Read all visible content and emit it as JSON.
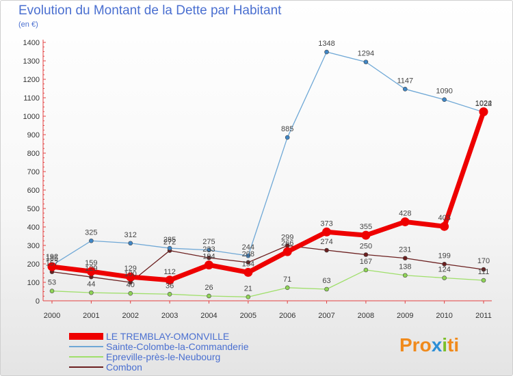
{
  "title": "Evolution du Montant de la Dette par Habitant",
  "unit": "(en €)",
  "brand": {
    "p1": "Pro",
    "p2": "x",
    "p3": "i",
    "p4": "ti"
  },
  "colors": {
    "title": "#4a6fd0",
    "LE TREMBLAY-OMONVILLE": "#ee0000",
    "Sainte-Colombe-la-Commanderie": "#6fa8d6",
    "Epreville-près-le-Neubourg": "#9fdf6a",
    "Combon": "#6b1f1f"
  },
  "chart_data": {
    "type": "line",
    "title": "Evolution du Montant de la Dette par Habitant",
    "ylabel": "(en €)",
    "xlabel": "",
    "ylim": [
      0,
      1400
    ],
    "yticks": [
      "0",
      "100",
      "200",
      "300",
      "400",
      "500",
      "600",
      "700",
      "800",
      "900",
      "1000",
      "1100",
      "1200",
      "1300",
      "1400"
    ],
    "grid": false,
    "legend_placement": "bottom-left",
    "x": [
      "2000",
      "2001",
      "2002",
      "2003",
      "2004",
      "2005",
      "2006",
      "2007",
      "2008",
      "2009",
      "2010",
      "2011"
    ],
    "series": [
      {
        "name": "LE TREMBLAY-OMONVILLE",
        "values": [
          185,
          159,
          129,
          112,
          194,
          154,
          266,
          373,
          355,
          428,
          403,
          1024
        ],
        "labels": [
          "185",
          "159",
          "129",
          "112",
          "194",
          "154",
          "266",
          "373",
          "355",
          "428",
          "403",
          "1024"
        ]
      },
      {
        "name": "Sainte-Colombe-la-Commanderie",
        "values": [
          192,
          325,
          312,
          285,
          275,
          244,
          885,
          1348,
          1294,
          1147,
          1090,
          1022
        ],
        "labels": [
          "192",
          "325",
          "312",
          "285",
          "275",
          "244",
          "885",
          "1348",
          "1294",
          "1147",
          "1090",
          "1022"
        ]
      },
      {
        "name": "Epreville-près-le-Neubourg",
        "values": [
          53,
          44,
          40,
          36,
          26,
          21,
          71,
          63,
          167,
          138,
          124,
          111
        ],
        "labels": [
          "53",
          "44",
          "40",
          "36",
          "26",
          "21",
          "71",
          "63",
          "167",
          "138",
          "124",
          "111"
        ]
      },
      {
        "name": "Combon",
        "values": [
          157,
          129,
          100,
          272,
          233,
          208,
          299,
          274,
          250,
          231,
          199,
          170
        ],
        "labels": [
          "157",
          "129",
          "100",
          "272",
          "233",
          "208",
          "299",
          "274",
          "250",
          "231",
          "199",
          "170"
        ]
      }
    ]
  }
}
